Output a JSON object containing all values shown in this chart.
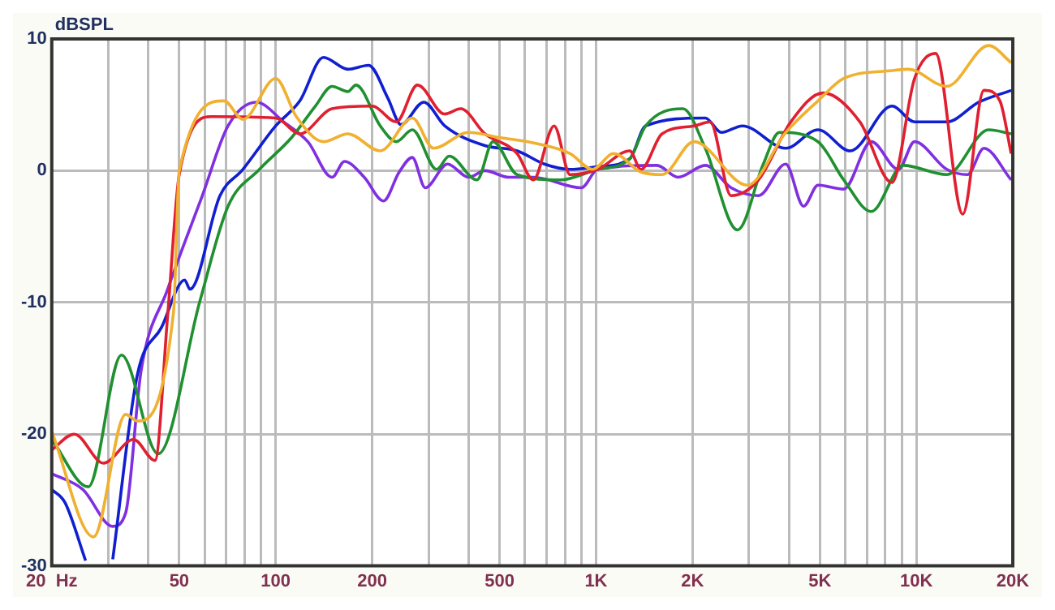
{
  "chart_data": {
    "type": "line",
    "ylabel": "dBSPL",
    "xlim": [
      20,
      20000
    ],
    "ylim": [
      -30,
      10
    ],
    "log": "x",
    "grid": true,
    "legend": false,
    "marker": "none",
    "line_style": "solid",
    "xticks": [
      {
        "value": 20,
        "label": "20  Hz"
      },
      {
        "value": 30,
        "label": null
      },
      {
        "value": 40,
        "label": null
      },
      {
        "value": 50,
        "label": "50"
      },
      {
        "value": 60,
        "label": null
      },
      {
        "value": 70,
        "label": null
      },
      {
        "value": 80,
        "label": null
      },
      {
        "value": 90,
        "label": null
      },
      {
        "value": 100,
        "label": "100"
      },
      {
        "value": 200,
        "label": "200"
      },
      {
        "value": 300,
        "label": null
      },
      {
        "value": 400,
        "label": null
      },
      {
        "value": 500,
        "label": "500"
      },
      {
        "value": 600,
        "label": null
      },
      {
        "value": 700,
        "label": null
      },
      {
        "value": 800,
        "label": null
      },
      {
        "value": 900,
        "label": null
      },
      {
        "value": 1000,
        "label": "1K"
      },
      {
        "value": 2000,
        "label": "2K"
      },
      {
        "value": 3000,
        "label": null
      },
      {
        "value": 4000,
        "label": null
      },
      {
        "value": 5000,
        "label": "5K"
      },
      {
        "value": 6000,
        "label": null
      },
      {
        "value": 7000,
        "label": null
      },
      {
        "value": 8000,
        "label": null
      },
      {
        "value": 9000,
        "label": null
      },
      {
        "value": 10000,
        "label": "10K"
      },
      {
        "value": 20000,
        "label": "20K"
      }
    ],
    "yticks": [
      -30,
      -20,
      -10,
      0,
      10
    ],
    "series": [
      {
        "color": "#f0b030",
        "x": [
          20,
          27,
          34,
          37,
          48,
          50,
          69,
          79,
          100,
          116,
          141,
          168,
          212,
          267,
          311,
          400,
          505,
          640,
          830,
          975,
          1135,
          1381,
          1607,
          2023,
          2966,
          3910,
          4932,
          5933,
          8395,
          9425,
          12440,
          16820,
          19770
        ],
        "values": [
          -19.8,
          -27.8,
          -18.5,
          -19,
          -10.7,
          0,
          5.3,
          3.9,
          7,
          4.1,
          2.2,
          2.8,
          1.5,
          4,
          1.7,
          2.9,
          2.5,
          2.1,
          1.3,
          0.1,
          1.3,
          -0.1,
          -0.3,
          2.2,
          -1.1,
          2.9,
          5.3,
          7,
          7.6,
          7.7,
          6.4,
          9.5,
          8.2
        ]
      },
      {
        "color": "#e02030",
        "x": [
          20,
          23.5,
          29,
          36,
          42,
          46,
          50,
          63,
          100,
          119,
          150,
          200,
          238,
          277,
          337,
          378,
          450,
          567,
          637,
          740,
          830,
          1011,
          1274,
          1381,
          1607,
          2023,
          2271,
          2641,
          3214,
          4055,
          5108,
          6667,
          8395,
          9870,
          11480,
          13960,
          16250,
          18230,
          19770
        ],
        "values": [
          -21.2,
          -20,
          -22.2,
          -20.4,
          -22,
          -11,
          -0.3,
          4.1,
          4,
          2.8,
          4.7,
          4.9,
          3.7,
          6.5,
          4.3,
          4.7,
          2.8,
          1.3,
          -0.7,
          3.4,
          -0.3,
          0.1,
          1.5,
          0.1,
          2.8,
          3.4,
          3.7,
          -1.9,
          -0.7,
          3.7,
          5.9,
          3.7,
          -0.9,
          7,
          8.9,
          -3.3,
          6.1,
          5.3,
          1.3
        ]
      },
      {
        "color": "#209030",
        "x": [
          20,
          26,
          33,
          43,
          58,
          71,
          89,
          112,
          133,
          150,
          168,
          178,
          212,
          238,
          267,
          318,
          348,
          425,
          477,
          567,
          775,
          1011,
          1274,
          1429,
          1867,
          2193,
          2766,
          3328,
          3735,
          4932,
          5933,
          7228,
          9100,
          12440,
          16820,
          19770
        ],
        "values": [
          -20.4,
          -24,
          -14,
          -21.5,
          -9.9,
          -2.7,
          0.1,
          2.5,
          4.9,
          6.4,
          6,
          6.5,
          3.4,
          2.2,
          3.1,
          0.1,
          1.1,
          -0.7,
          2.2,
          -0.3,
          -0.7,
          0.1,
          0.9,
          3.4,
          4.7,
          1.7,
          -4.5,
          0.5,
          2.9,
          2.2,
          -0.7,
          -3.1,
          0.4,
          -0.3,
          3.1,
          2.8
        ]
      },
      {
        "color": "#1020d0",
        "x": [
          20,
          22,
          25.5,
          27,
          31,
          37,
          44,
          52,
          54,
          67,
          79,
          100,
          119,
          141,
          168,
          195,
          224,
          246,
          290,
          337,
          450,
          567,
          690,
          830,
          1011,
          1274,
          1429,
          2193,
          2463,
          2864,
          3910,
          4932,
          6213,
          8395,
          9870,
          12440,
          15670,
          19770
        ],
        "values": [
          -24.2,
          -25.2,
          -29.6,
          null,
          -29.5,
          -15.5,
          -11.9,
          -8.3,
          -9,
          -1.9,
          0.1,
          3.4,
          5.3,
          8.6,
          7.7,
          8,
          5.5,
          3.5,
          5.2,
          3.4,
          1.9,
          1.5,
          0.5,
          0.1,
          0.3,
          0.9,
          3.4,
          4,
          2.9,
          3.4,
          1.7,
          3.1,
          1.5,
          4.9,
          3.7,
          3.7,
          5.2,
          6.1
        ]
      },
      {
        "color": "#8030e0",
        "x": [
          20,
          25,
          31,
          34,
          38,
          46,
          59,
          71,
          87,
          106,
          126,
          150,
          164,
          189,
          217,
          243,
          267,
          293,
          344,
          400,
          450,
          535,
          637,
          900,
          1011,
          1550,
          1803,
          2193,
          2641,
          3214,
          3910,
          4446,
          4932,
          5933,
          7228,
          8790,
          9870,
          12440,
          14450,
          16250,
          19770
        ],
        "values": [
          -23,
          -24.2,
          -27,
          -26,
          -15.2,
          -9,
          -1.9,
          3.4,
          5.2,
          3.7,
          2.2,
          -0.5,
          0.7,
          -0.5,
          -2.3,
          -0.1,
          1,
          -1.3,
          0.5,
          -0.5,
          0,
          -0.5,
          -0.5,
          -1.3,
          0.1,
          0.4,
          -0.5,
          0.4,
          -1.3,
          -1.9,
          0.5,
          -2.7,
          -1.1,
          -1.4,
          2.2,
          0.1,
          2.2,
          0.1,
          -0.3,
          1.7,
          -0.7
        ]
      }
    ]
  }
}
